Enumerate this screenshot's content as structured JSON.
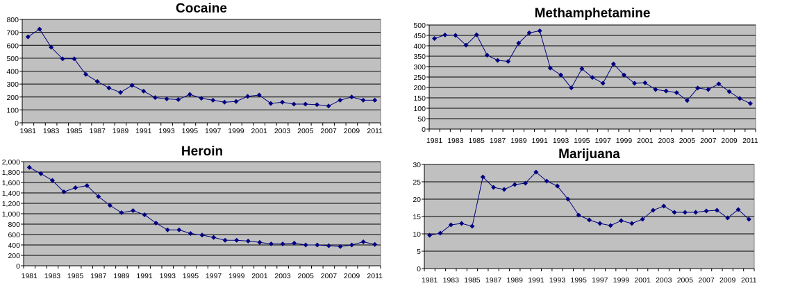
{
  "chart_data": [
    {
      "type": "line",
      "title": "Cocaine",
      "xlabel": "",
      "ylabel": "",
      "ylim": [
        0,
        800
      ],
      "yticks": [
        "0",
        "100",
        "200",
        "300",
        "400",
        "500",
        "600",
        "700",
        "800"
      ],
      "ytick_values": [
        0,
        100,
        200,
        300,
        400,
        500,
        600,
        700,
        800
      ],
      "x": [
        1981,
        1982,
        1983,
        1984,
        1985,
        1986,
        1987,
        1988,
        1989,
        1990,
        1991,
        1992,
        1993,
        1994,
        1995,
        1996,
        1997,
        1998,
        1999,
        2000,
        2001,
        2002,
        2003,
        2004,
        2005,
        2006,
        2007,
        2008,
        2009,
        2010,
        2011
      ],
      "xtick_labels": [
        "1981",
        "1983",
        "1985",
        "1987",
        "1989",
        "1991",
        "1993",
        "1995",
        "1997",
        "1999",
        "2001",
        "2003",
        "2005",
        "2007",
        "2009",
        "2011"
      ],
      "values": [
        665,
        725,
        585,
        495,
        495,
        375,
        320,
        270,
        235,
        290,
        245,
        195,
        185,
        180,
        220,
        190,
        175,
        160,
        165,
        205,
        215,
        150,
        160,
        145,
        145,
        140,
        130,
        175,
        200,
        175,
        175
      ],
      "grid": true
    },
    {
      "type": "line",
      "title": "Methamphetamine",
      "xlabel": "",
      "ylabel": "",
      "ylim": [
        0,
        500
      ],
      "yticks": [
        "0",
        "50",
        "100",
        "150",
        "200",
        "250",
        "300",
        "350",
        "400",
        "450",
        "500"
      ],
      "ytick_values": [
        0,
        50,
        100,
        150,
        200,
        250,
        300,
        350,
        400,
        450,
        500
      ],
      "x": [
        1981,
        1982,
        1983,
        1984,
        1985,
        1986,
        1987,
        1988,
        1989,
        1990,
        1991,
        1992,
        1993,
        1994,
        1995,
        1996,
        1997,
        1998,
        1999,
        2000,
        2001,
        2002,
        2003,
        2004,
        2005,
        2006,
        2007,
        2008,
        2009,
        2010,
        2011
      ],
      "xtick_labels": [
        "1981",
        "1983",
        "1985",
        "1987",
        "1989",
        "1991",
        "1993",
        "1995",
        "1997",
        "1999",
        "2001",
        "2003",
        "2005",
        "2007",
        "2009",
        "2011"
      ],
      "values": [
        435,
        452,
        450,
        403,
        453,
        355,
        330,
        325,
        413,
        462,
        472,
        293,
        260,
        198,
        290,
        248,
        220,
        313,
        260,
        220,
        222,
        190,
        183,
        175,
        137,
        197,
        190,
        217,
        180,
        147,
        123
      ],
      "grid": true
    },
    {
      "type": "line",
      "title": "Heroin",
      "xlabel": "",
      "ylabel": "",
      "ylim": [
        0,
        2000
      ],
      "yticks": [
        "0",
        "200",
        "400",
        "600",
        "800",
        "1,000",
        "1,200",
        "1,400",
        "1,600",
        "1,800",
        "2,000"
      ],
      "ytick_values": [
        0,
        200,
        400,
        600,
        800,
        1000,
        1200,
        1400,
        1600,
        1800,
        2000
      ],
      "x": [
        1981,
        1982,
        1983,
        1984,
        1985,
        1986,
        1987,
        1988,
        1989,
        1990,
        1991,
        1992,
        1993,
        1994,
        1995,
        1996,
        1997,
        1998,
        1999,
        2000,
        2001,
        2002,
        2003,
        2004,
        2005,
        2006,
        2007,
        2008,
        2009,
        2010,
        2011
      ],
      "xtick_labels": [
        "1981",
        "1983",
        "1985",
        "1987",
        "1989",
        "1991",
        "1993",
        "1995",
        "1997",
        "1999",
        "2001",
        "2003",
        "2005",
        "2007",
        "2009",
        "2011"
      ],
      "values": [
        1890,
        1770,
        1640,
        1420,
        1500,
        1540,
        1330,
        1160,
        1020,
        1060,
        980,
        820,
        690,
        690,
        620,
        590,
        545,
        490,
        490,
        475,
        450,
        420,
        420,
        435,
        400,
        400,
        385,
        370,
        400,
        460,
        410
      ],
      "grid": true
    },
    {
      "type": "line",
      "title": "Marijuana",
      "xlabel": "",
      "ylabel": "",
      "ylim": [
        0,
        30
      ],
      "yticks": [
        "0",
        "5",
        "10",
        "15",
        "20",
        "25",
        "30"
      ],
      "ytick_values": [
        0,
        5,
        10,
        15,
        20,
        25,
        30
      ],
      "x": [
        1981,
        1982,
        1983,
        1984,
        1985,
        1986,
        1987,
        1988,
        1989,
        1990,
        1991,
        1992,
        1993,
        1994,
        1995,
        1996,
        1997,
        1998,
        1999,
        2000,
        2001,
        2002,
        2003,
        2004,
        2005,
        2006,
        2007,
        2008,
        2009,
        2010,
        2011
      ],
      "xtick_labels": [
        "1981",
        "1983",
        "1985",
        "1987",
        "1989",
        "1991",
        "1993",
        "1995",
        "1997",
        "1999",
        "2001",
        "2003",
        "2005",
        "2007",
        "2009",
        "2011"
      ],
      "values": [
        9.6,
        10.2,
        12.6,
        13,
        12.2,
        26.4,
        23.4,
        22.8,
        24.2,
        24.6,
        27.8,
        25.2,
        23.8,
        20,
        15.4,
        14,
        13,
        12.4,
        13.8,
        13,
        14.2,
        16.8,
        18,
        16.2,
        16.2,
        16.2,
        16.6,
        16.8,
        14.6,
        17,
        14.2
      ],
      "grid": true
    }
  ],
  "colors": {
    "plot_bg": "#c0c0c0",
    "line": "#000080",
    "grid": "#000000"
  }
}
